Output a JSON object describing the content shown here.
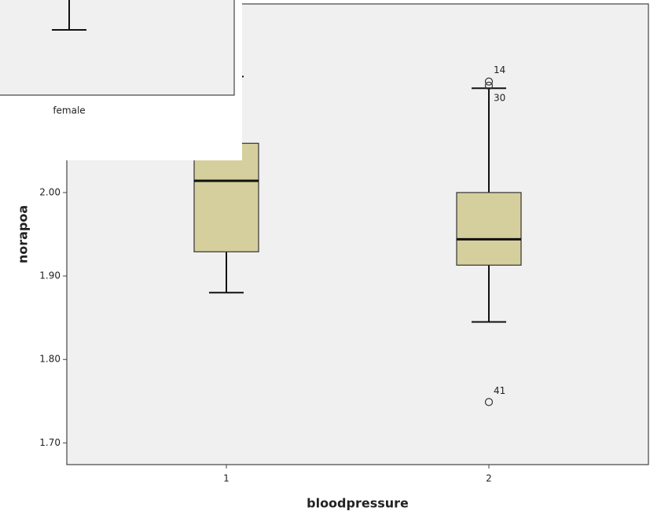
{
  "chart_data": {
    "type": "boxplot",
    "x_label": "bloodpressure",
    "y_label": "norapoa",
    "categories": [
      "1",
      "2"
    ],
    "boxes": [
      {
        "whisker_low": 1.88,
        "q1": 1.929,
        "median": 2.014,
        "q3": 2.059,
        "whisker_high": 2.139,
        "outliers": []
      },
      {
        "whisker_low": 1.845,
        "q1": 1.913,
        "median": 1.944,
        "q3": 2.0,
        "whisker_high": 2.125,
        "outliers": [
          {
            "label": "14",
            "value": 2.133
          },
          {
            "label": "30",
            "value": 2.128
          },
          {
            "label": "41",
            "value": 1.749
          }
        ]
      }
    ],
    "color": "#d5cf9d",
    "background": "#f0f0f0",
    "ylim": [
      1.674,
      2.226
    ],
    "yticks": [
      {
        "value": 1.7,
        "label": "1.70"
      },
      {
        "value": 1.8,
        "label": "1.80"
      },
      {
        "value": 1.9,
        "label": "1.90"
      },
      {
        "value": 2.0,
        "label": "2.00"
      }
    ]
  },
  "overlay_window": {
    "category": "female"
  }
}
